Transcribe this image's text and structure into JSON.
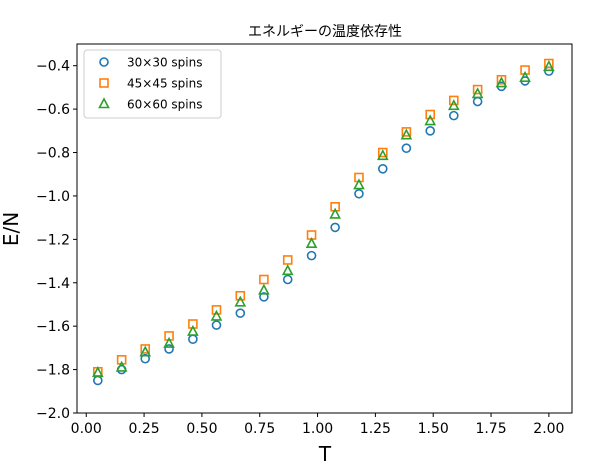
{
  "chart_data": {
    "type": "scatter",
    "title": "エネルギーの温度依存性",
    "xlabel": "T",
    "ylabel": "E/N",
    "xlim": [
      -0.04,
      2.1
    ],
    "ylim": [
      -2.0,
      -0.3
    ],
    "xticks": [
      0.0,
      0.25,
      0.5,
      0.75,
      1.0,
      1.25,
      1.5,
      1.75,
      2.0
    ],
    "xtick_labels": [
      "0.00",
      "0.25",
      "0.50",
      "0.75",
      "1.00",
      "1.25",
      "1.50",
      "1.75",
      "2.00"
    ],
    "yticks": [
      -2.0,
      -1.8,
      -1.6,
      -1.4,
      -1.2,
      -1.0,
      -0.8,
      -0.6,
      -0.4
    ],
    "ytick_labels": [
      "−2.0",
      "−1.8",
      "−1.6",
      "−1.4",
      "−1.2",
      "−1.0",
      "−0.8",
      "−0.6",
      "−0.4"
    ],
    "grid": false,
    "legend_position": "top-left",
    "x": [
      0.05,
      0.153,
      0.255,
      0.358,
      0.461,
      0.563,
      0.666,
      0.768,
      0.871,
      0.974,
      1.076,
      1.179,
      1.282,
      1.384,
      1.487,
      1.589,
      1.692,
      1.795,
      1.897,
      2.0
    ],
    "series": [
      {
        "name": "30×30 spins",
        "marker": "circle",
        "color": "#1f77b4",
        "values": [
          -1.85,
          -1.8,
          -1.75,
          -1.705,
          -1.66,
          -1.595,
          -1.54,
          -1.465,
          -1.385,
          -1.275,
          -1.145,
          -0.99,
          -0.875,
          -0.78,
          -0.7,
          -0.63,
          -0.565,
          -0.495,
          -0.47,
          -0.425
        ]
      },
      {
        "name": "45×45 spins",
        "marker": "square",
        "color": "#ff7f0e",
        "values": [
          -1.81,
          -1.755,
          -1.705,
          -1.645,
          -1.59,
          -1.525,
          -1.46,
          -1.385,
          -1.295,
          -1.18,
          -1.05,
          -0.915,
          -0.8,
          -0.705,
          -0.625,
          -0.56,
          -0.51,
          -0.465,
          -0.42,
          -0.39
        ]
      },
      {
        "name": "60×60 spins",
        "marker": "triangle",
        "color": "#2ca02c",
        "values": [
          -1.815,
          -1.79,
          -1.72,
          -1.68,
          -1.625,
          -1.555,
          -1.49,
          -1.435,
          -1.345,
          -1.22,
          -1.085,
          -0.95,
          -0.815,
          -0.72,
          -0.655,
          -0.585,
          -0.53,
          -0.48,
          -0.455,
          -0.405
        ]
      }
    ]
  }
}
